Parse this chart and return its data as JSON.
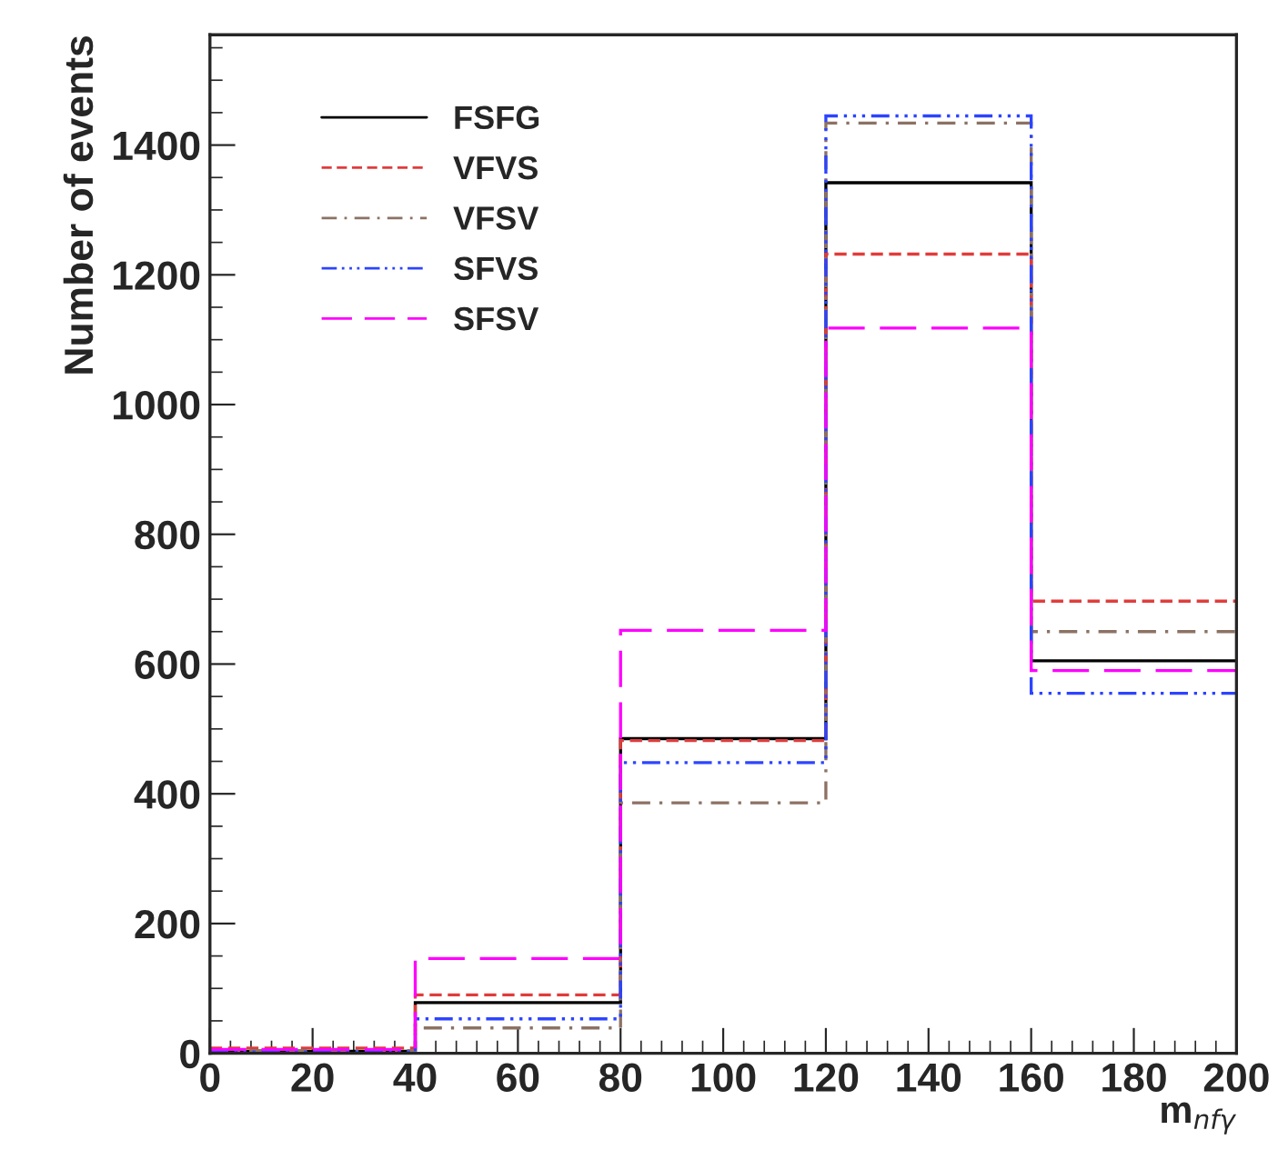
{
  "chart_data": {
    "type": "histogram",
    "xlabel": "m$_{nfγ}$",
    "ylabel": "Number of events",
    "bins": [
      0,
      40,
      80,
      120,
      160,
      200
    ],
    "series": [
      {
        "name": "FSFG",
        "color": "#000000",
        "line_style": "solid",
        "values": [
          3,
          78,
          485,
          1342,
          605
        ]
      },
      {
        "name": "VFVS",
        "color": "#e03c3c",
        "line_style": "dashed",
        "values": [
          8,
          90,
          482,
          1232,
          697
        ]
      },
      {
        "name": "VFSV",
        "color": "#8c7264",
        "line_style": "dashdot",
        "values": [
          4,
          39,
          386,
          1434,
          650
        ]
      },
      {
        "name": "SFVS",
        "color": "#2c44ff",
        "line_style": "dashdotdot",
        "values": [
          2,
          53,
          448,
          1445,
          555
        ]
      },
      {
        "name": "SFSV",
        "color": "#ff00ff",
        "line_style": "longdash",
        "values": [
          6,
          146,
          652,
          1118,
          590
        ]
      }
    ],
    "xlim": [
      0,
      200
    ],
    "ylim": [
      0,
      1570
    ],
    "xticks": [
      0,
      20,
      40,
      60,
      80,
      100,
      120,
      140,
      160,
      180,
      200
    ],
    "yticks": [
      0,
      200,
      400,
      600,
      800,
      1000,
      1200,
      1400
    ],
    "legend": "top left",
    "grid": false
  }
}
